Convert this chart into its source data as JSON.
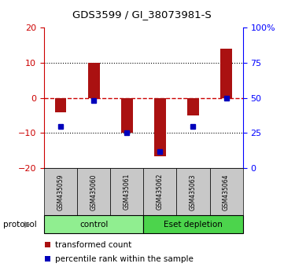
{
  "title": "GDS3599 / GI_38073981-S",
  "samples": [
    "GSM435059",
    "GSM435060",
    "GSM435061",
    "GSM435062",
    "GSM435063",
    "GSM435064"
  ],
  "transformed_count": [
    -4.0,
    10.0,
    -10.0,
    -16.5,
    -5.0,
    14.0
  ],
  "percentile_rank": [
    30,
    48,
    25,
    12,
    30,
    50
  ],
  "ylim_left": [
    -20,
    20
  ],
  "ylim_right": [
    0,
    100
  ],
  "yticks_left": [
    -20,
    -10,
    0,
    10,
    20
  ],
  "yticks_right": [
    0,
    25,
    50,
    75,
    100
  ],
  "groups": [
    {
      "label": "control",
      "start": 0,
      "end": 3,
      "color": "#90EE90"
    },
    {
      "label": "Eset depletion",
      "start": 3,
      "end": 6,
      "color": "#4CD44C"
    }
  ],
  "bar_color": "#AA1111",
  "dot_color": "#0000BB",
  "dashed_line_color": "#CC0000",
  "bg_label": "#C8C8C8",
  "legend_items": [
    {
      "color": "#AA1111",
      "label": "transformed count"
    },
    {
      "color": "#0000BB",
      "label": "percentile rank within the sample"
    }
  ]
}
